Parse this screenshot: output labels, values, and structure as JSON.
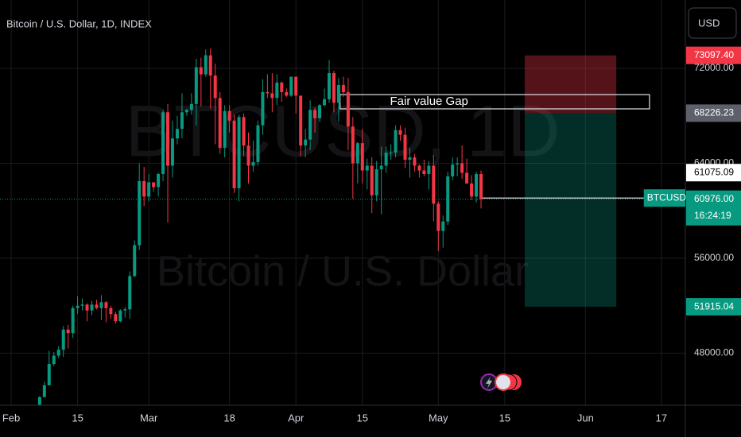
{
  "chart_data": {
    "type": "candlestick",
    "title": "Bitcoin / U.S. Dollar, 1D, INDEX",
    "currency": "USD",
    "watermark": {
      "symbol": "BTCUSD, 1D",
      "name": "Bitcoin / U.S. Dollar"
    },
    "up_color": "#089981",
    "down_color": "#f23645",
    "grid": true,
    "xlim": [
      -2.35,
      142.05
    ],
    "ylim": [
      43620,
      77760
    ],
    "xticks": [
      {
        "value": 0,
        "label": "Feb"
      },
      {
        "value": 14,
        "label": "15"
      },
      {
        "value": 29,
        "label": "Mar"
      },
      {
        "value": 46,
        "label": "18"
      },
      {
        "value": 60,
        "label": "Apr"
      },
      {
        "value": 74,
        "label": "15"
      },
      {
        "value": 90,
        "label": "May"
      },
      {
        "value": 104,
        "label": "15"
      },
      {
        "value": 121,
        "label": "Jun"
      },
      {
        "value": 137,
        "label": "17"
      }
    ],
    "yticks": [
      {
        "value": 48000,
        "label": "48000.00"
      },
      {
        "value": 56000,
        "label": "56000.00"
      },
      {
        "value": 64000,
        "label": "64000.00"
      },
      {
        "value": 72000,
        "label": "72000.00"
      }
    ],
    "x": [
      6,
      7,
      8,
      9,
      10,
      11,
      12,
      13,
      14,
      15,
      16,
      17,
      18,
      19,
      20,
      21,
      22,
      23,
      24,
      25,
      26,
      27,
      28,
      29,
      30,
      31,
      32,
      33,
      34,
      35,
      36,
      37,
      38,
      39,
      40,
      41,
      42,
      43,
      44,
      45,
      46,
      47,
      48,
      49,
      50,
      51,
      52,
      53,
      54,
      55,
      56,
      57,
      58,
      59,
      60,
      61,
      62,
      63,
      64,
      65,
      66,
      67,
      68,
      69,
      70,
      71,
      72,
      73,
      74,
      75,
      76,
      77,
      78,
      79,
      80,
      81,
      82,
      83,
      84,
      85,
      86,
      87,
      88,
      89,
      90,
      91,
      92,
      93,
      94,
      95,
      96,
      97,
      98,
      99
    ],
    "open": [
      43100,
      44300,
      45300,
      47100,
      47800,
      48300,
      50000,
      49700,
      51800,
      52000,
      52100,
      51600,
      52100,
      51800,
      52300,
      51800,
      51300,
      50700,
      51600,
      51700,
      54500,
      57100,
      62500,
      61200,
      62400,
      62000,
      63100,
      68300,
      63800,
      66100,
      66900,
      68300,
      68500,
      69000,
      72100,
      71500,
      73100,
      71400,
      69500,
      65300,
      68400,
      67600,
      61900,
      67900,
      65500,
      63800,
      64100,
      67200,
      70000,
      69900,
      69500,
      70800,
      70000,
      69700,
      71300,
      69700,
      65500,
      66000,
      68500,
      67800,
      68900,
      69400,
      71600,
      69100,
      70600,
      70000,
      67100,
      64000,
      65700,
      63400,
      63800,
      61300,
      63500,
      63800,
      64900,
      64900,
      66800,
      66400,
      64300,
      64500,
      63800,
      63400,
      63100,
      63800,
      60600,
      58300,
      59100,
      62900,
      63900,
      64000,
      63200,
      62300,
      61200,
      63100
    ],
    "high": [
      44400,
      45600,
      48200,
      48100,
      48600,
      50300,
      50400,
      52000,
      52800,
      52600,
      52200,
      52400,
      52500,
      52900,
      52400,
      52000,
      51500,
      51700,
      51900,
      54900,
      57500,
      64000,
      63700,
      63100,
      62400,
      63200,
      68500,
      69000,
      67600,
      68000,
      69900,
      68600,
      69900,
      72800,
      72900,
      73600,
      73700,
      72400,
      70000,
      68900,
      68900,
      68100,
      68100,
      68200,
      66600,
      65900,
      67600,
      71100,
      71500,
      71600,
      71500,
      70900,
      70300,
      71300,
      71300,
      69700,
      66900,
      69300,
      68700,
      69000,
      70300,
      72700,
      71800,
      71200,
      71300,
      71200,
      67900,
      65800,
      66900,
      64400,
      64500,
      64200,
      65400,
      65400,
      65600,
      67200,
      67200,
      67000,
      65300,
      64800,
      63900,
      64300,
      64200,
      64700,
      60800,
      59600,
      63300,
      64500,
      64500,
      65500,
      64400,
      63000,
      63300,
      63400
    ],
    "low": [
      42800,
      44300,
      45300,
      46900,
      47600,
      47700,
      48400,
      49300,
      51300,
      51600,
      50700,
      51200,
      51700,
      50800,
      50600,
      50900,
      50500,
      50600,
      51000,
      50900,
      54400,
      56700,
      60400,
      60800,
      61600,
      61200,
      62500,
      59000,
      62800,
      65600,
      66100,
      68000,
      68100,
      67200,
      68800,
      71300,
      68600,
      65600,
      64800,
      64500,
      66600,
      61500,
      60800,
      64600,
      62300,
      63300,
      63800,
      66400,
      69500,
      68300,
      68900,
      69200,
      69600,
      69600,
      68200,
      64600,
      64500,
      65100,
      66600,
      67500,
      68800,
      69100,
      68300,
      67500,
      69600,
      65100,
      61000,
      62300,
      62300,
      61800,
      59800,
      60800,
      59700,
      63200,
      64300,
      64500,
      65900,
      63600,
      62800,
      63300,
      62800,
      62900,
      61800,
      59100,
      56600,
      56900,
      58800,
      62600,
      62900,
      62700,
      62300,
      60900,
      60700,
      60200
    ],
    "close": [
      44300,
      45300,
      47100,
      47800,
      48300,
      50000,
      49700,
      51800,
      52000,
      52100,
      51600,
      52100,
      51800,
      52300,
      51800,
      51300,
      50700,
      51600,
      51700,
      54500,
      57100,
      62500,
      61200,
      62400,
      62000,
      63100,
      68300,
      63800,
      66100,
      66900,
      68300,
      68500,
      69000,
      72100,
      71500,
      73100,
      71400,
      69500,
      65300,
      68400,
      67600,
      61900,
      67900,
      65500,
      63800,
      64100,
      67200,
      70000,
      69900,
      69500,
      70800,
      70000,
      69700,
      71300,
      69700,
      65500,
      66000,
      68500,
      67800,
      68900,
      69400,
      71600,
      69100,
      70600,
      70000,
      67100,
      64000,
      65700,
      63400,
      63800,
      61300,
      63500,
      63800,
      64900,
      64900,
      66800,
      66400,
      64300,
      64500,
      63800,
      63400,
      63100,
      63800,
      60600,
      58300,
      59100,
      62900,
      63900,
      64000,
      63200,
      62300,
      61200,
      63100,
      60976
    ],
    "last_price": {
      "value": 60976,
      "label": "60976.00",
      "name": "BTCUSD",
      "countdown": "16:24:19"
    },
    "ray": {
      "value": 61075.09,
      "label": "61075.09",
      "x": [
        99.3,
        133.3
      ]
    },
    "annotation": {
      "text": "Fair value Gap",
      "x": [
        69.3,
        134.5
      ],
      "y": [
        68590,
        69790
      ]
    },
    "position": {
      "x": [
        108.2,
        127.5
      ],
      "stop": {
        "value": 73097.4,
        "label": "73097.40"
      },
      "entry": {
        "value": 68226.23,
        "label": "68226.23"
      },
      "target": {
        "value": 51915.04,
        "label": "51915.04"
      }
    }
  }
}
